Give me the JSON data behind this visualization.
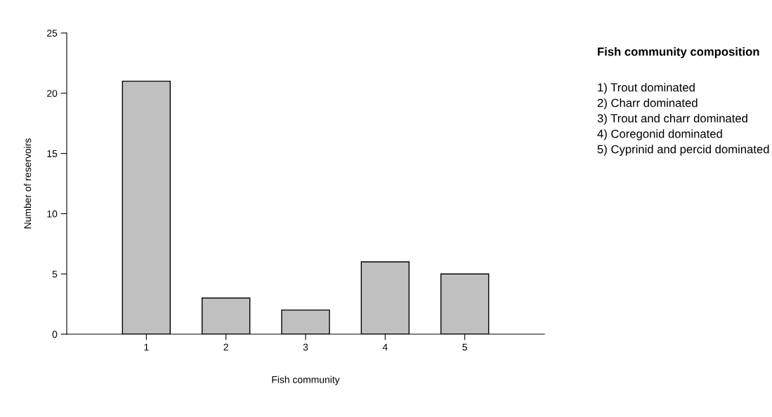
{
  "chart_data": {
    "type": "bar",
    "title": "Fish community composition",
    "xlabel": "Fish community",
    "ylabel": "Number of reservoirs",
    "categories": [
      "1",
      "2",
      "3",
      "4",
      "5"
    ],
    "values": [
      21,
      3,
      2,
      6,
      5
    ],
    "color": "#c0c0c0",
    "ylim": [
      0,
      25
    ],
    "yticks": [
      0,
      5,
      10,
      15,
      20,
      25
    ],
    "grid": false,
    "legend": false,
    "annotations": [
      "1) Trout dominated",
      "2) Charr dominated",
      "3) Trout and charr dominated",
      "4) Coregonid dominated",
      "5) Cyprinid and percid dominated"
    ]
  }
}
